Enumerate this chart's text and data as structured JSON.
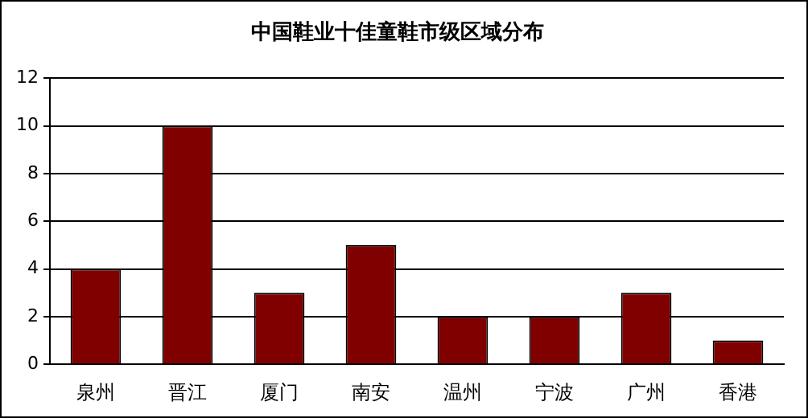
{
  "chart_data": {
    "type": "bar",
    "title": "中国鞋业十佳童鞋市级区域分布",
    "categories": [
      "泉州",
      "晋江",
      "厦门",
      "南安",
      "温州",
      "宁波",
      "广州",
      "香港"
    ],
    "values": [
      4,
      10,
      3,
      5,
      2,
      2,
      3,
      1
    ],
    "color": "#800000",
    "ylim": [
      0,
      12
    ],
    "yticks": [
      0,
      2,
      4,
      6,
      8,
      10,
      12
    ],
    "grid": "y",
    "legend": false
  }
}
